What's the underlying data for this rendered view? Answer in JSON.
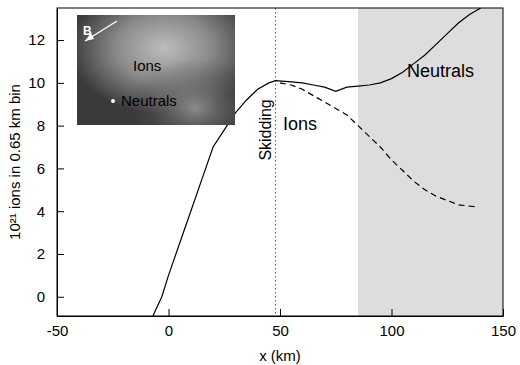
{
  "chart_data": {
    "type": "line",
    "x_label": "x (km)",
    "y_label": "10²¹ ions in 0.65 km bin",
    "xlim": [
      -50,
      150
    ],
    "ylim": [
      -0.9,
      13.5
    ],
    "xticks": [
      -50,
      0,
      50,
      100,
      150
    ],
    "yticks": [
      0,
      2,
      4,
      6,
      8,
      10,
      12
    ],
    "grid": false,
    "series": [
      {
        "color": "#000000",
        "line_style": "solid",
        "x": [
          -7,
          -3,
          0,
          5,
          10,
          15,
          20,
          25,
          30,
          35,
          40,
          45,
          48,
          55,
          60,
          65,
          70,
          75,
          80,
          85,
          90,
          95,
          100,
          105,
          110,
          115,
          120,
          125,
          130,
          135,
          140
        ],
        "values": [
          -0.9,
          0,
          1,
          2.5,
          4,
          5.5,
          7,
          7.8,
          8.6,
          9.2,
          9.7,
          10.0,
          10.1,
          10.05,
          10,
          9.9,
          9.8,
          9.6,
          9.8,
          9.85,
          9.9,
          10,
          10.2,
          10.5,
          10.9,
          11.3,
          11.8,
          12.3,
          12.8,
          13.2,
          13.5
        ]
      },
      {
        "color": "#000000",
        "line_style": "dashed",
        "x": [
          50,
          55,
          60,
          65,
          70,
          75,
          80,
          85,
          90,
          95,
          100,
          105,
          110,
          115,
          120,
          125,
          130,
          138
        ],
        "values": [
          10.0,
          9.9,
          9.7,
          9.4,
          9.1,
          8.8,
          8.5,
          8.0,
          7.5,
          7.0,
          6.4,
          5.9,
          5.4,
          5.0,
          4.7,
          4.5,
          4.3,
          4.2
        ]
      }
    ],
    "regions": [
      {
        "x": [
          85,
          150
        ],
        "color": "#dddddd"
      }
    ],
    "vlines": [
      {
        "x": 48,
        "label": "Skidding",
        "label_y": 7.8,
        "line_style": "dotted",
        "color": "#555555"
      }
    ],
    "annotations": [
      {
        "text": "Ions",
        "x": 59,
        "y": 8.0
      },
      {
        "text": "Neutrals",
        "x": 122,
        "y": 10.5
      }
    ],
    "inset": {
      "labels": [
        "B",
        "Ions",
        "Neutrals"
      ]
    }
  }
}
